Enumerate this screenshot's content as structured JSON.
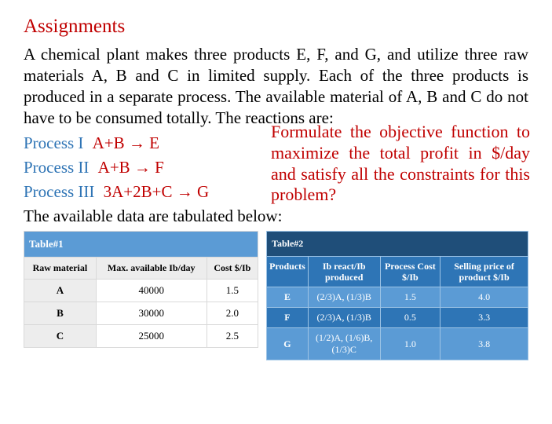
{
  "title": "Assignments",
  "paragraph": "A chemical plant makes three products E, F, and G, and utilize three raw materials A, B and C in limited supply. Each of the three products is produced in a separate process. The available material of A, B and C do not have to be consumed totally. The reactions are:",
  "processes": [
    {
      "label": "Process I",
      "eq": "A+B → E"
    },
    {
      "label": "Process II",
      "eq": "A+B → F"
    },
    {
      "label": "Process III",
      "eq": "3A+2B+C → G"
    }
  ],
  "question": "Formulate the objective function to maximize the total profit in $/day and satisfy all the constraints for this problem?",
  "below": "The available data are tabulated below:",
  "table1": {
    "title": "Table#1",
    "columns": [
      "Raw material",
      "Max. available Ib/day",
      "Cost $/Ib"
    ],
    "rows": [
      [
        "A",
        "40000",
        "1.5"
      ],
      [
        "B",
        "30000",
        "2.0"
      ],
      [
        "C",
        "25000",
        "2.5"
      ]
    ]
  },
  "table2": {
    "title": "Table#2",
    "columns": [
      "Products",
      "Ib react/Ib produced",
      "Process Cost $/Ib",
      "Selling price of product $/Ib"
    ],
    "rows": [
      [
        "E",
        "(2/3)A, (1/3)B",
        "1.5",
        "4.0"
      ],
      [
        "F",
        "(2/3)A, (1/3)B",
        "0.5",
        "3.3"
      ],
      [
        "G",
        "(1/2)A, (1/6)B, (1/3)C",
        "1.0",
        "3.8"
      ]
    ]
  }
}
